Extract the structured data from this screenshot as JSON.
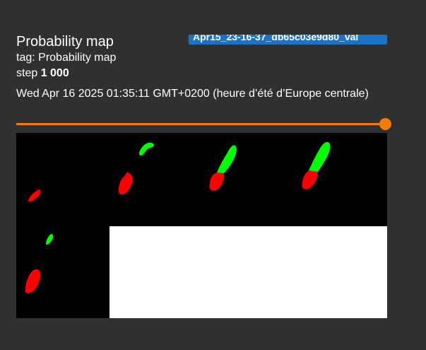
{
  "card": {
    "title": "Probability map",
    "run_name": "Apr15_23-16-37_db65c03e9d80_val",
    "tag_prefix": "tag: ",
    "tag": "Probability map",
    "step_prefix": "step ",
    "step_value": "1 000",
    "timestamp": "Wed Apr 16 2025 01:35:11 GMT+0200 (heure d’été d’Europe centrale)"
  },
  "step_slider": {
    "value_fraction": 1.0
  },
  "colors": {
    "background": "#303030",
    "run_badge": "#1a73c8",
    "slider_accent": "#f57c00",
    "class_a": "#ff0000",
    "class_b": "#00ff00",
    "image_background": "#000000",
    "empty_tile": "#ffffff"
  }
}
